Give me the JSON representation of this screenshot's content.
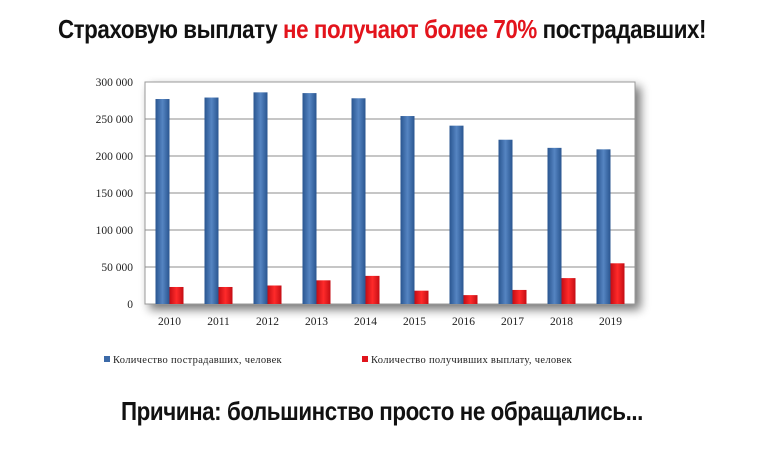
{
  "title": {
    "part1": "Страховую выплату ",
    "part2": "не получают более 70%",
    "part3": " пострадавших!"
  },
  "footer": "Причина: большинство просто не обращались...",
  "colors": {
    "highlight": "#e3141c",
    "series_blue": "#3c6aa8",
    "series_red": "#e0141c"
  },
  "chart_data": {
    "type": "bar",
    "categories": [
      "2010",
      "2011",
      "2012",
      "2013",
      "2014",
      "2015",
      "2016",
      "2017",
      "2018",
      "2019"
    ],
    "series": [
      {
        "name": "Количество пострадавших, человек",
        "values": [
          277000,
          279000,
          286000,
          285000,
          278000,
          254000,
          241000,
          222000,
          211000,
          209000
        ]
      },
      {
        "name": "Количество получивших выплату, человек",
        "values": [
          23000,
          23000,
          25000,
          32000,
          38000,
          18000,
          12000,
          19000,
          35000,
          55000
        ]
      }
    ],
    "ylim": [
      0,
      300000
    ],
    "yticks": [
      "0",
      "50 000",
      "100 000",
      "150 000",
      "200 000",
      "250 000",
      "300 000"
    ],
    "grid": true,
    "legend": "bottom"
  }
}
